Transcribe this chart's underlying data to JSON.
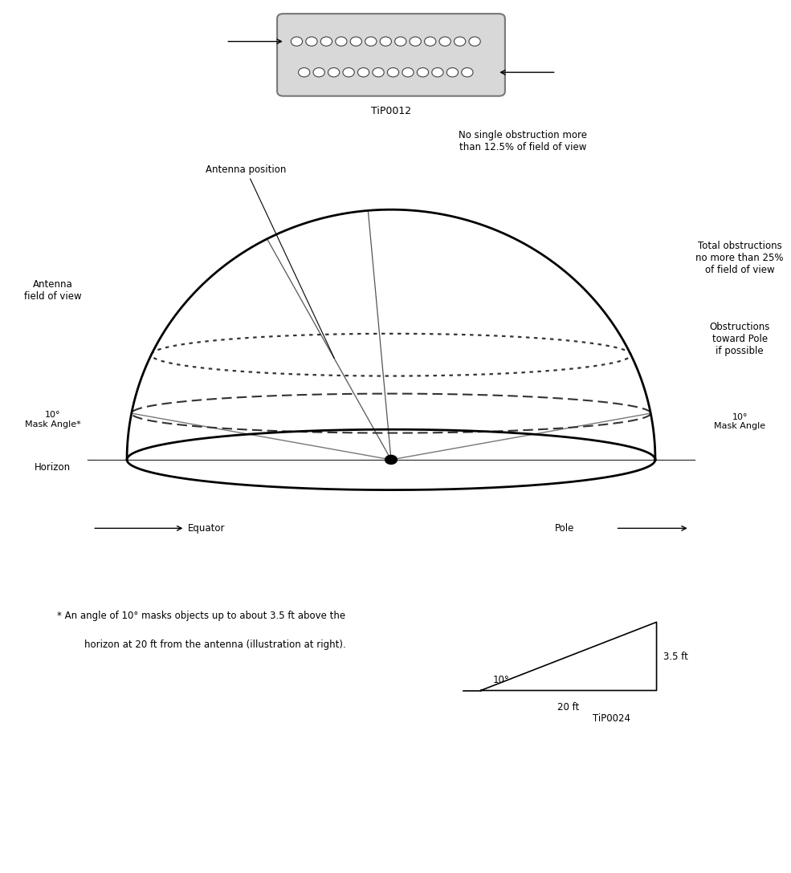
{
  "bg_color": "#ffffff",
  "fig_width": 9.54,
  "fig_height": 12.35,
  "connector_label": "TiP0012",
  "diagram_label": "TiP0024",
  "annotations": {
    "antenna_position": "Antenna position",
    "antenna_fov": "Antenna\nfield of view",
    "mask_angle_left": "10°\nMask Angle*",
    "horizon": "Horizon",
    "equator": "Equator",
    "pole": "Pole",
    "mask_angle_right": "10°\nMask Angle",
    "no_single": "No single obstruction more\nthan 12.5% of field of view",
    "total_obs": "Total obstructions\nno more than 25%\nof field of view",
    "obs_pole": "Obstructions\ntoward Pole\nif possible",
    "footnote_line1": "* An angle of 10° masks objects up to about 3.5 ft above the",
    "footnote_line2": "horizon at 20 ft from the antenna (illustration at right).",
    "triangle_10deg": "10°",
    "triangle_35ft": "3.5 ft",
    "triangle_20ft": "20 ft"
  }
}
